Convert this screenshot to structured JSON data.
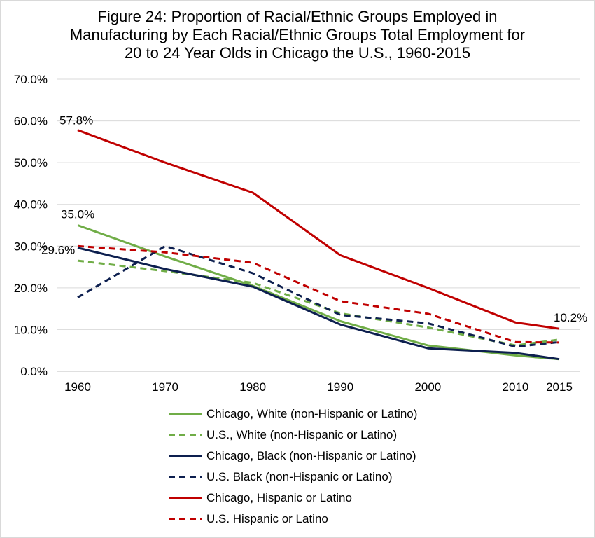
{
  "chart_data": {
    "type": "line",
    "title_lines": [
      "Figure 24: Proportion of Racial/Ethnic Groups Employed in",
      "Manufacturing by Each Racial/Ethnic Groups Total Employment for",
      "20 to 24 Year Olds in Chicago the U.S., 1960-2015"
    ],
    "x": [
      1960,
      1970,
      1980,
      1990,
      2000,
      2010,
      2015
    ],
    "x_tick_labels": [
      "1960",
      "1970",
      "1980",
      "1990",
      "2000",
      "2010",
      "2015"
    ],
    "ylim": [
      0,
      70
    ],
    "y_tick_labels": [
      "0.0%",
      "10.0%",
      "20.0%",
      "30.0%",
      "40.0%",
      "50.0%",
      "60.0%",
      "70.0%"
    ],
    "grid": true,
    "legend_position": "bottom",
    "series": [
      {
        "name": "Chicago, White (non-Hispanic or Latino)",
        "color": "#70ad47",
        "dashed": false,
        "values": [
          35.0,
          27.5,
          20.5,
          12.0,
          6.2,
          3.8,
          2.9
        ]
      },
      {
        "name": "U.S., White (non-Hispanic or Latino)",
        "color": "#70ad47",
        "dashed": true,
        "values": [
          26.5,
          24.0,
          21.2,
          13.9,
          10.5,
          6.2,
          7.6
        ]
      },
      {
        "name": "Chicago, Black (non-Hispanic or Latino)",
        "color": "#0d1f4f",
        "dashed": false,
        "values": [
          29.6,
          24.5,
          20.3,
          11.2,
          5.5,
          4.4,
          2.9
        ]
      },
      {
        "name": "U.S. Black (non-Hispanic or Latino)",
        "color": "#0d1f4f",
        "dashed": true,
        "values": [
          17.7,
          30.0,
          23.5,
          13.5,
          11.5,
          5.9,
          7.0
        ]
      },
      {
        "name": "Chicago, Hispanic or Latino",
        "color": "#c00000",
        "dashed": false,
        "values": [
          57.8,
          50.0,
          42.8,
          27.8,
          20.0,
          11.7,
          10.2
        ]
      },
      {
        "name": "U.S. Hispanic or Latino",
        "color": "#c00000",
        "dashed": true,
        "values": [
          30.0,
          28.5,
          26.0,
          16.8,
          13.8,
          7.0,
          6.9
        ]
      }
    ],
    "data_labels": [
      {
        "text": "57.8%",
        "series": 4,
        "index": 0
      },
      {
        "text": "35.0%",
        "series": 0,
        "index": 0
      },
      {
        "text": "29.6%",
        "series": 2,
        "index": 0
      },
      {
        "text": "10.2%",
        "series": 4,
        "index": 6
      }
    ]
  }
}
